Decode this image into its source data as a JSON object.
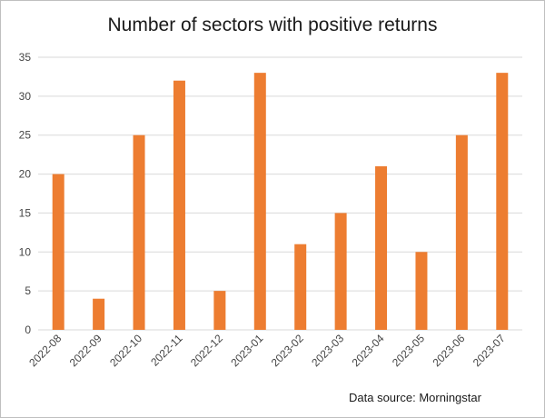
{
  "chart_data": {
    "type": "bar",
    "title": "Number of sectors with positive returns",
    "categories": [
      "2022-08",
      "2022-09",
      "2022-10",
      "2022-11",
      "2022-12",
      "2023-01",
      "2023-02",
      "2023-03",
      "2023-04",
      "2023-05",
      "2023-06",
      "2023-07"
    ],
    "values": [
      20,
      4,
      25,
      32,
      5,
      33,
      11,
      15,
      21,
      10,
      25,
      33
    ],
    "xlabel": "",
    "ylabel": "",
    "ylim": [
      0,
      35
    ],
    "yticks": [
      0,
      5,
      10,
      15,
      20,
      25,
      30,
      35
    ],
    "grid": true,
    "legend": "none",
    "bar_color": "#ED7D31",
    "grid_color": "#d9d9d9",
    "annotation": "Data source: Morningstar"
  }
}
